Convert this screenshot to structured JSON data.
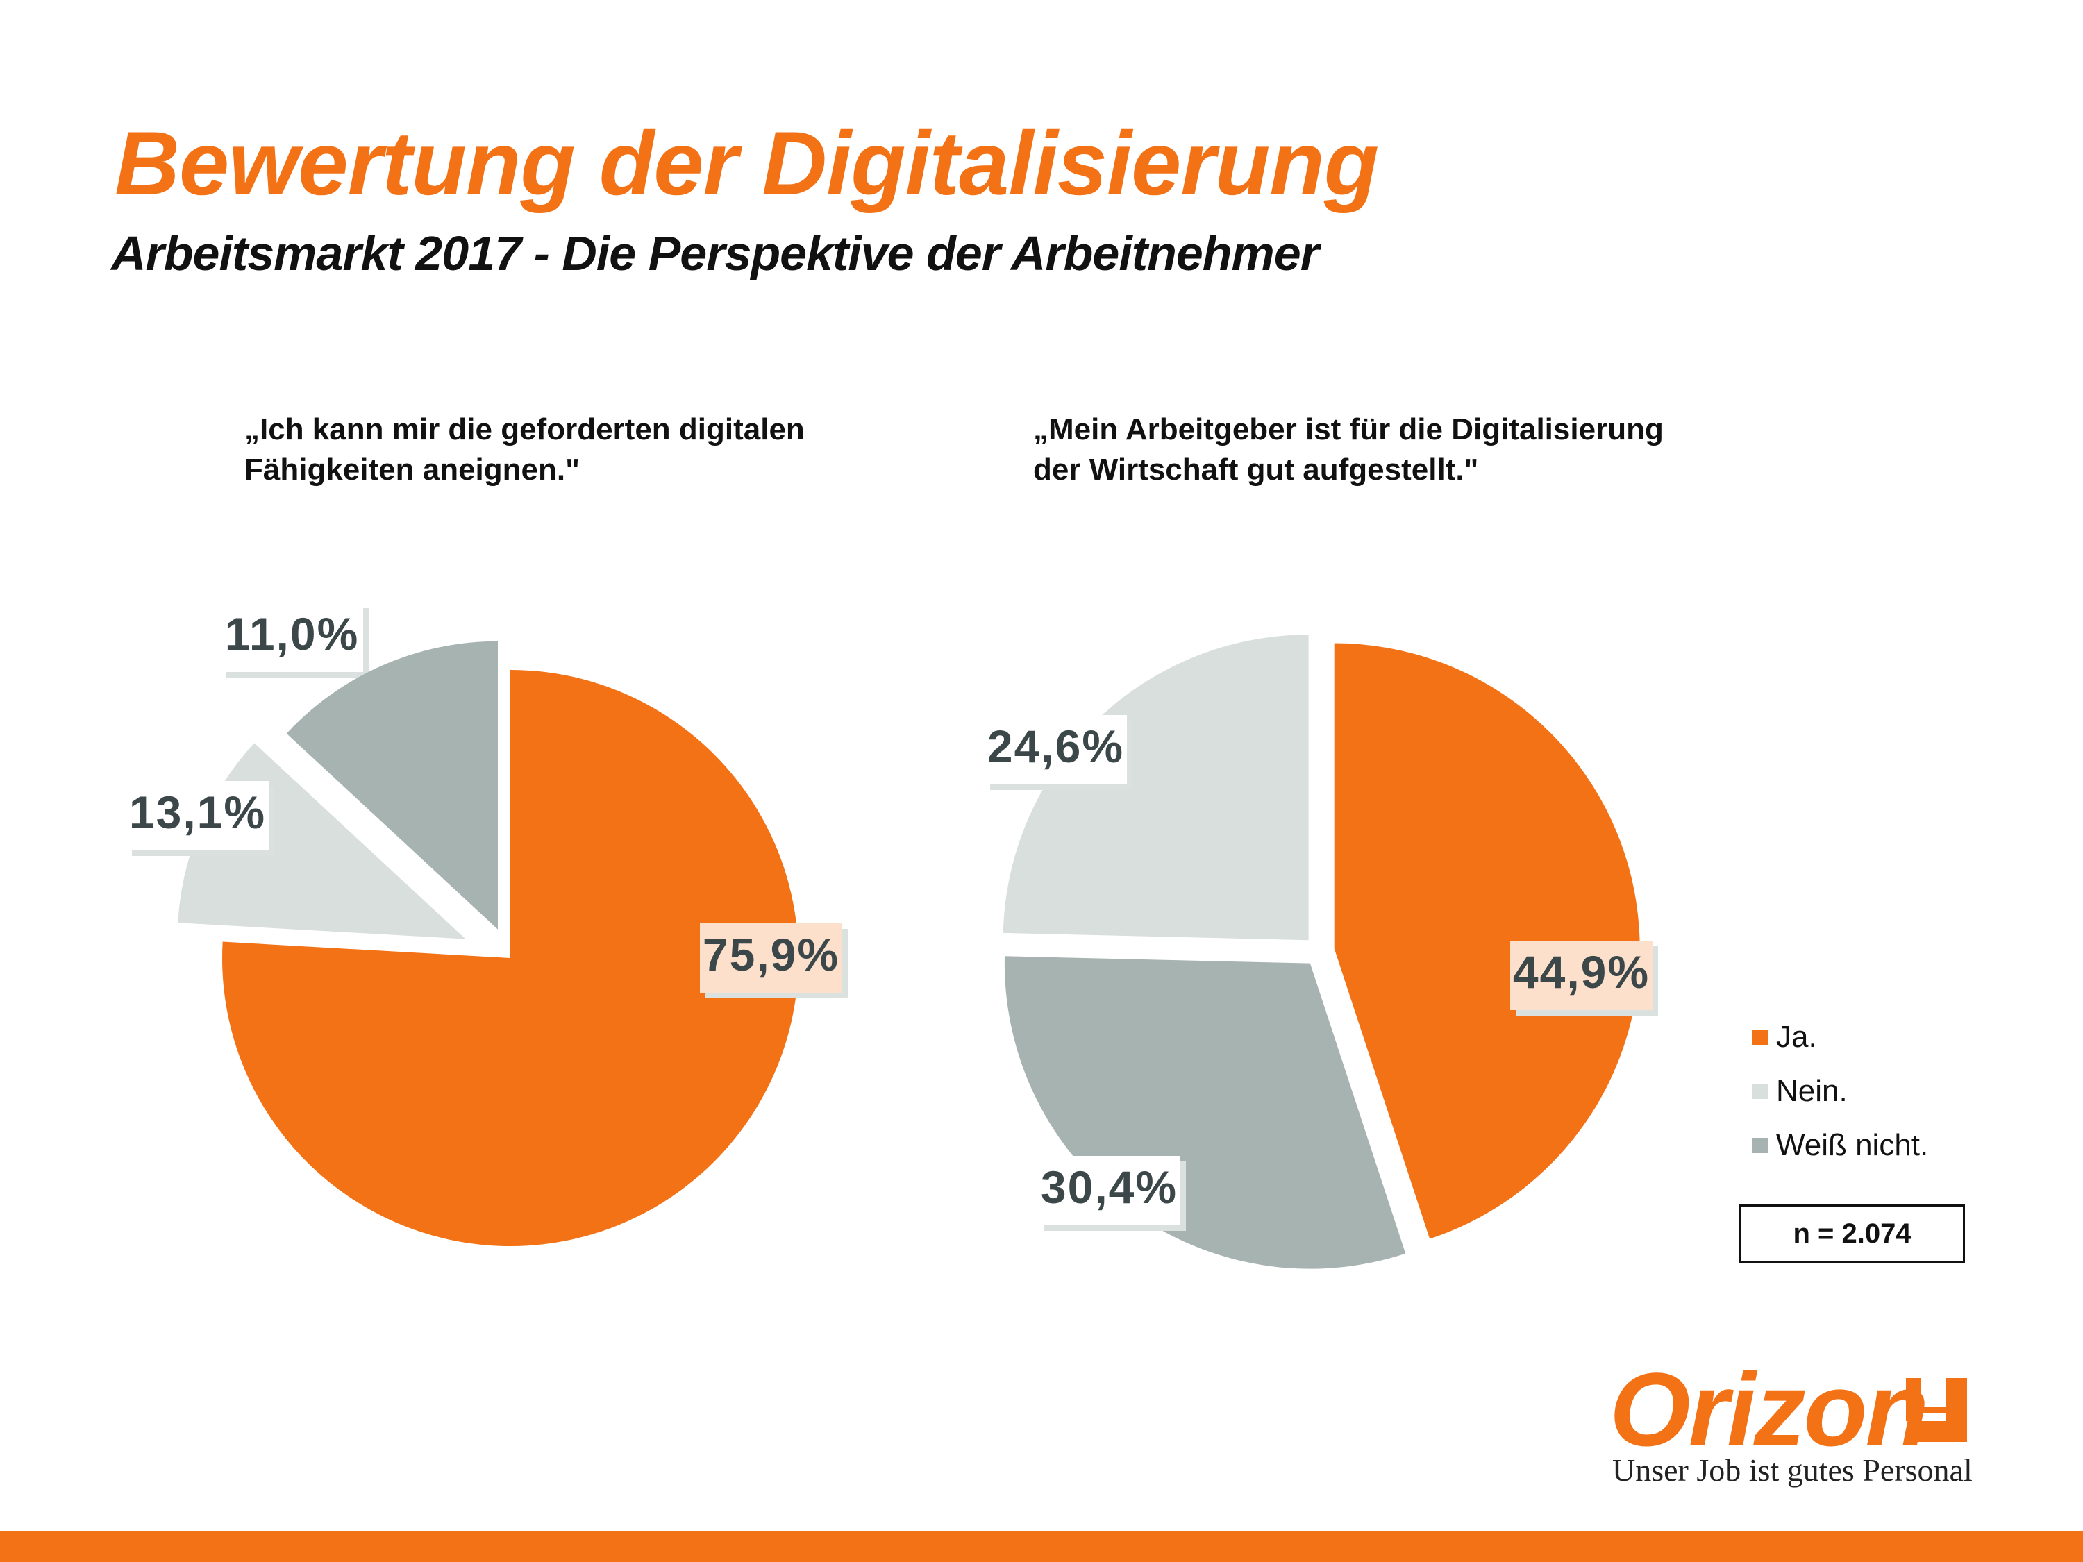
{
  "header": {
    "title": "Bewertung der Digitalisierung",
    "subtitle": "Arbeitsmarkt 2017 - Die Perspektive der Arbeitnehmer"
  },
  "colors": {
    "ja": "#f47216",
    "nein": "#d8dfdc",
    "weiss_nicht": "#a6b3b1",
    "label_text": "#3b4749"
  },
  "chart_data": [
    {
      "type": "pie",
      "title": "„Ich kann mir die geforderten digitalen\nFähigkeiten aneignen.\"",
      "slices": [
        {
          "name": "Ja.",
          "value": 75.9,
          "label": "75,9%",
          "color": "#f47216"
        },
        {
          "name": "Nein.",
          "value": 11.0,
          "label": "11,0%",
          "color": "#d8dfdc"
        },
        {
          "name": "Weiß nicht.",
          "value": 13.1,
          "label": "13,1%",
          "color": "#a6b3b1"
        }
      ]
    },
    {
      "type": "pie",
      "title": "„Mein Arbeitgeber ist für die Digitalisierung\nder Wirtschaft gut aufgestellt.\"",
      "slices": [
        {
          "name": "Ja.",
          "value": 44.9,
          "label": "44,9%",
          "color": "#f47216"
        },
        {
          "name": "Weiß nicht.",
          "value": 30.4,
          "label": "30,4%",
          "color": "#a6b3b1"
        },
        {
          "name": "Nein.",
          "value": 24.6,
          "label": "24,6%",
          "color": "#d8dfdc"
        }
      ]
    }
  ],
  "legend": [
    {
      "label": "Ja.",
      "color": "#f47216"
    },
    {
      "label": "Nein.",
      "color": "#d8dfdc"
    },
    {
      "label": "Weiß nicht.",
      "color": "#a6b3b1"
    }
  ],
  "sample": "n = 2.074",
  "logo": {
    "name": "Orizon",
    "tagline": "Unser Job ist gutes Personal"
  }
}
